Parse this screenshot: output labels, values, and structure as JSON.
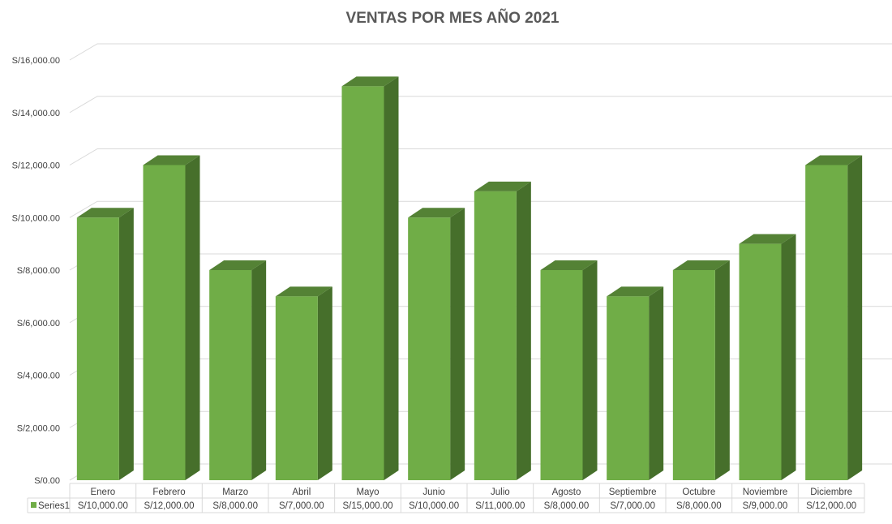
{
  "chart_data": {
    "type": "bar",
    "title": "VENTAS POR MES AÑO 2021",
    "xlabel": "",
    "ylabel": "",
    "categories": [
      "Enero",
      "Febrero",
      "Marzo",
      "Abril",
      "Mayo",
      "Junio",
      "Julio",
      "Agosto",
      "Septiembre",
      "Octubre",
      "Noviembre",
      "Diciembre"
    ],
    "series": [
      {
        "name": "Series1",
        "values": [
          10000,
          12000,
          8000,
          7000,
          15000,
          10000,
          11000,
          8000,
          7000,
          8000,
          9000,
          12000
        ],
        "value_labels": [
          "S/10,000.00",
          "S/12,000.00",
          "S/8,000.00",
          "S/7,000.00",
          "S/15,000.00",
          "S/10,000.00",
          "S/11,000.00",
          "S/8,000.00",
          "S/7,000.00",
          "S/8,000.00",
          "S/9,000.00",
          "S/12,000.00"
        ]
      }
    ],
    "yticks": [
      0,
      2000,
      4000,
      6000,
      8000,
      10000,
      12000,
      14000,
      16000
    ],
    "ytick_labels": [
      "S/0.00",
      "S/2,000.00",
      "S/4,000.00",
      "S/6,000.00",
      "S/8,000.00",
      "S/10,000.00",
      "S/12,000.00",
      "S/14,000.00",
      "S/16,000.00"
    ],
    "ylim": [
      0,
      16000
    ],
    "grid": true,
    "style": "3d-column",
    "data_table": true,
    "colors": {
      "front": "#70ad47",
      "side": "#466f2b",
      "top": "#548235",
      "grid": "#d9d9d9"
    }
  }
}
